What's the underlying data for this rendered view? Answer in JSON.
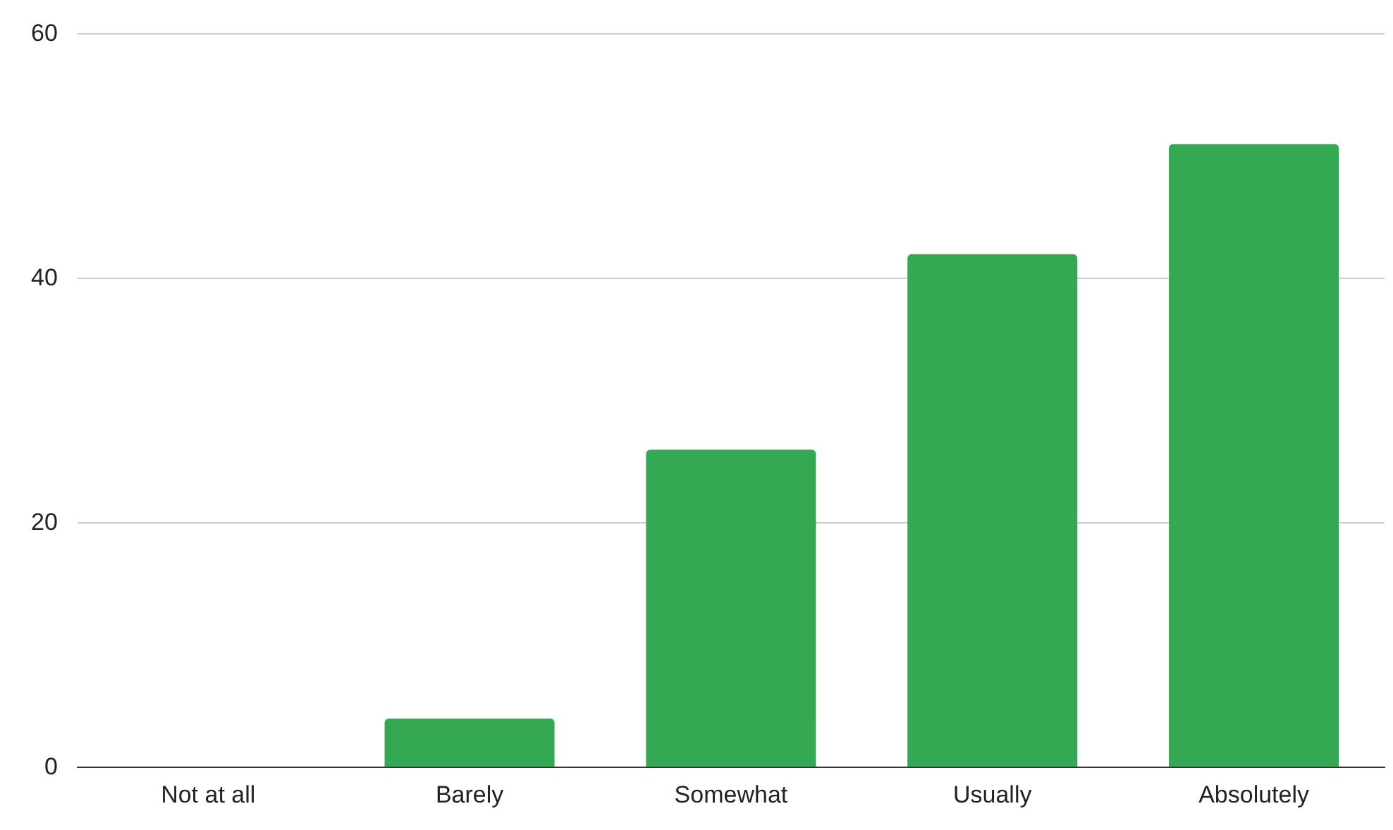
{
  "chart_data": {
    "type": "bar",
    "categories": [
      "Not at all",
      "Barely",
      "Somewhat",
      "Usually",
      "Absolutely"
    ],
    "values": [
      0,
      4,
      26,
      42,
      51
    ],
    "color": "#34a853",
    "ylim": [
      0,
      60
    ],
    "yticks": [
      0,
      20,
      40,
      60
    ],
    "grid": "y",
    "legend": false
  }
}
